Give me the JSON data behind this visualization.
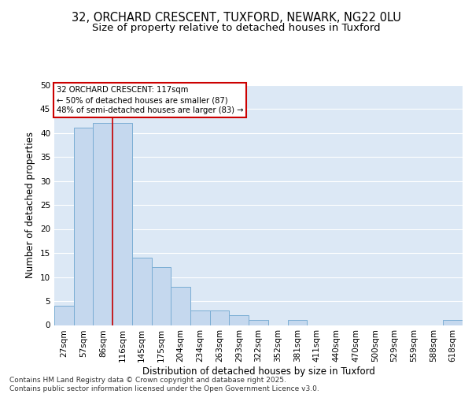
{
  "title1": "32, ORCHARD CRESCENT, TUXFORD, NEWARK, NG22 0LU",
  "title2": "Size of property relative to detached houses in Tuxford",
  "xlabel": "Distribution of detached houses by size in Tuxford",
  "ylabel": "Number of detached properties",
  "categories": [
    "27sqm",
    "57sqm",
    "86sqm",
    "116sqm",
    "145sqm",
    "175sqm",
    "204sqm",
    "234sqm",
    "263sqm",
    "293sqm",
    "322sqm",
    "352sqm",
    "381sqm",
    "411sqm",
    "440sqm",
    "470sqm",
    "500sqm",
    "529sqm",
    "559sqm",
    "588sqm",
    "618sqm"
  ],
  "values": [
    4,
    41,
    42,
    42,
    14,
    12,
    8,
    3,
    3,
    2,
    1,
    0,
    1,
    0,
    0,
    0,
    0,
    0,
    0,
    0,
    1
  ],
  "bar_color": "#c5d8ee",
  "bar_edge_color": "#7aadd4",
  "vline_index": 2.5,
  "vline_color": "#cc0000",
  "annotation_text": "32 ORCHARD CRESCENT: 117sqm\n← 50% of detached houses are smaller (87)\n48% of semi-detached houses are larger (83) →",
  "annotation_box_color": "#ffffff",
  "annotation_box_edge": "#cc0000",
  "ylim": [
    0,
    50
  ],
  "yticks": [
    0,
    5,
    10,
    15,
    20,
    25,
    30,
    35,
    40,
    45,
    50
  ],
  "fig_background_color": "#ffffff",
  "background_color": "#dce8f5",
  "grid_color": "#ffffff",
  "footer": "Contains HM Land Registry data © Crown copyright and database right 2025.\nContains public sector information licensed under the Open Government Licence v3.0.",
  "title_fontsize": 10.5,
  "subtitle_fontsize": 9.5,
  "label_fontsize": 8.5,
  "tick_fontsize": 7.5,
  "footer_fontsize": 6.5
}
